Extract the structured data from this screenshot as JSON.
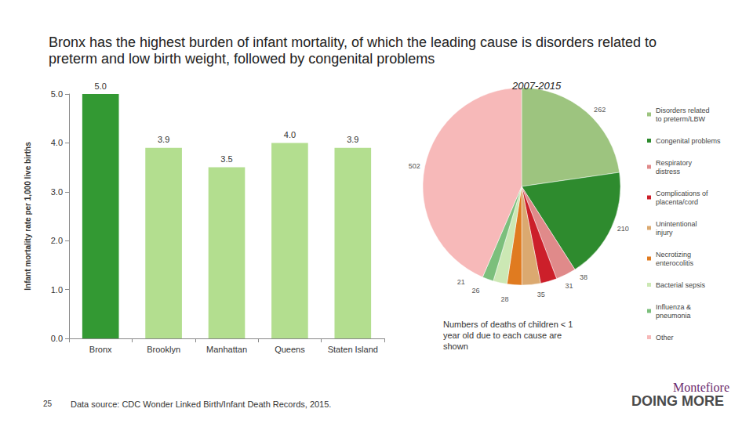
{
  "title": "Bronx has the highest burden of infant mortality, of which the leading cause is disorders related to preterm and low birth weight, followed by congenital problems",
  "page_number": 25,
  "source": "Data source: CDC Wonder Linked Birth/Infant Death Records, 2015.",
  "logo": [
    "Montefiore",
    "DOING MORE"
  ],
  "chart_data": [
    {
      "type": "bar",
      "ylabel": "Infant mortality rate per 1,000 live births",
      "categories": [
        "Bronx",
        "Brooklyn",
        "Manhattan",
        "Queens",
        "Staten Island"
      ],
      "values": [
        5.0,
        3.9,
        3.5,
        4.0,
        3.9
      ],
      "value_labels": [
        "5.0",
        "3.9",
        "3.5",
        "4.0",
        "3.9"
      ],
      "colors": [
        "#339933",
        "#b3de8f",
        "#b3de8f",
        "#b3de8f",
        "#b3de8f"
      ],
      "ylim": [
        0,
        5
      ],
      "yticks": [
        {
          "value": 0,
          "label": "0.0"
        },
        {
          "value": 1,
          "label": "1.0"
        },
        {
          "value": 2,
          "label": "2.0"
        },
        {
          "value": 3,
          "label": "3.0"
        },
        {
          "value": 4,
          "label": "4.0"
        },
        {
          "value": 5,
          "label": "5.0"
        }
      ],
      "grid": false,
      "data_labels": true
    },
    {
      "type": "pie",
      "title": "2007-2015",
      "annotation": "Numbers of deaths of children < 1 year old due to each cause are shown",
      "categories": [
        "Disorders related to preterm/LBW",
        "Congenital problems",
        "Respiratory distress",
        "Complications of placenta/cord",
        "Unintentional injury",
        "Necrotizing enterocolitis",
        "Bacterial sepsis",
        "Influenza & pneumonia",
        "Other"
      ],
      "values": [
        262,
        210,
        38,
        31,
        35,
        28,
        26,
        21,
        502
      ],
      "colors": [
        "#9dc47f",
        "#2e8b2e",
        "#e08a8a",
        "#cc1f2a",
        "#dba970",
        "#e07b20",
        "#cce8b4",
        "#7cbf7c",
        "#f7b9b9"
      ],
      "legend": "right",
      "data_labels": true
    }
  ]
}
